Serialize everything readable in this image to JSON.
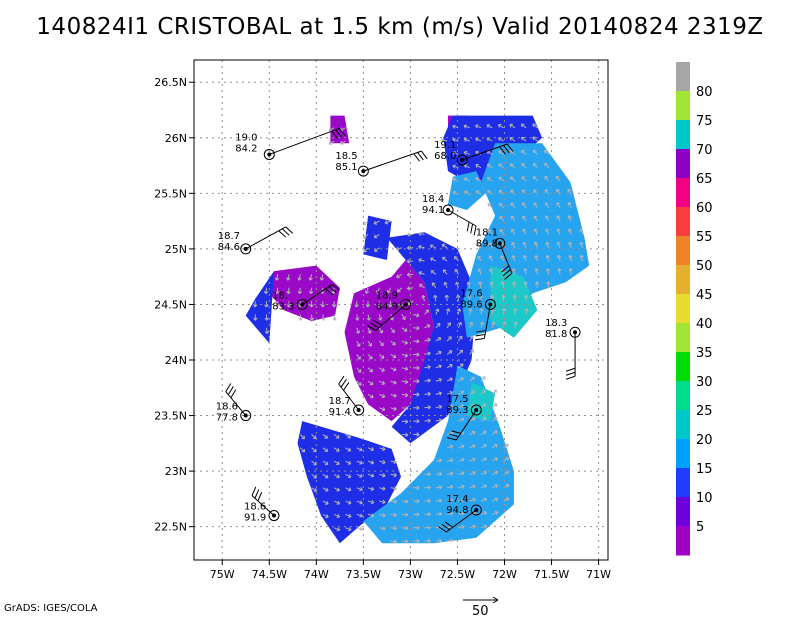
{
  "chart_data": {
    "type": "heatmap",
    "title": "140824I1 CRISTOBAL at 1.5 km (m/s) Valid 20140824 2319Z",
    "xlim": [
      -75.3,
      -70.9
    ],
    "ylim": [
      22.2,
      26.7
    ],
    "x_ticks": [
      {
        "v": -75.0,
        "label": "75W"
      },
      {
        "v": -74.5,
        "label": "74.5W"
      },
      {
        "v": -74.0,
        "label": "74W"
      },
      {
        "v": -73.5,
        "label": "73.5W"
      },
      {
        "v": -73.0,
        "label": "73W"
      },
      {
        "v": -72.5,
        "label": "72.5W"
      },
      {
        "v": -72.0,
        "label": "72W"
      },
      {
        "v": -71.5,
        "label": "71.5W"
      },
      {
        "v": -71.0,
        "label": "71W"
      }
    ],
    "y_ticks": [
      {
        "v": 22.5,
        "label": "22.5N"
      },
      {
        "v": 23.0,
        "label": "23N"
      },
      {
        "v": 23.5,
        "label": "23.5N"
      },
      {
        "v": 24.0,
        "label": "24N"
      },
      {
        "v": 24.5,
        "label": "24.5N"
      },
      {
        "v": 25.0,
        "label": "25N"
      },
      {
        "v": 25.5,
        "label": "25.5N"
      },
      {
        "v": 26.0,
        "label": "26N"
      },
      {
        "v": 26.5,
        "label": "26.5N"
      }
    ],
    "grid": true,
    "colorbar": {
      "labels": [
        "5",
        "10",
        "15",
        "20",
        "25",
        "30",
        "35",
        "40",
        "45",
        "50",
        "55",
        "60",
        "65",
        "70",
        "75",
        "80"
      ],
      "colors": [
        "#a000c8",
        "#6e00dc",
        "#1e3cff",
        "#00a0ff",
        "#00c8c8",
        "#00dc8c",
        "#00dc00",
        "#a0e632",
        "#e6dc32",
        "#e6af2d",
        "#f08228",
        "#fa3c3c",
        "#f00082",
        "#8c00c8",
        "#00c8c8",
        "#a0e632",
        "#a6a6a6"
      ]
    },
    "wind_regions": [
      {
        "name": "purple-core",
        "speed": 5,
        "color": "#9a08c8",
        "points": [
          [
            -73.6,
            24.6
          ],
          [
            -73.2,
            24.75
          ],
          [
            -73.05,
            24.9
          ],
          [
            -72.85,
            24.7
          ],
          [
            -72.75,
            24.3
          ],
          [
            -72.85,
            23.95
          ],
          [
            -73.0,
            23.6
          ],
          [
            -73.2,
            23.45
          ],
          [
            -73.45,
            23.6
          ],
          [
            -73.6,
            23.85
          ],
          [
            -73.7,
            24.25
          ]
        ]
      },
      {
        "name": "purple-west",
        "speed": 5,
        "color": "#9a08c8",
        "points": [
          [
            -74.45,
            24.8
          ],
          [
            -74.0,
            24.85
          ],
          [
            -73.75,
            24.65
          ],
          [
            -73.8,
            24.4
          ],
          [
            -74.05,
            24.35
          ],
          [
            -74.35,
            24.45
          ],
          [
            -74.5,
            24.6
          ]
        ]
      },
      {
        "name": "purple-north",
        "speed": 5,
        "color": "#9a08c8",
        "points": [
          [
            -73.85,
            26.2
          ],
          [
            -73.7,
            26.2
          ],
          [
            -73.65,
            25.95
          ],
          [
            -73.85,
            25.95
          ]
        ]
      },
      {
        "name": "purple-ne",
        "speed": 5,
        "color": "#9a08c8",
        "points": [
          [
            -72.6,
            26.2
          ],
          [
            -72.4,
            26.2
          ],
          [
            -72.35,
            25.8
          ],
          [
            -72.6,
            25.75
          ]
        ]
      },
      {
        "name": "blue-west",
        "speed": 10,
        "color": "#1e2ee6",
        "points": [
          [
            -74.65,
            24.55
          ],
          [
            -74.45,
            24.8
          ],
          [
            -74.5,
            24.15
          ],
          [
            -74.75,
            24.4
          ]
        ]
      },
      {
        "name": "blue-center",
        "speed": 10,
        "color": "#1e2ee6",
        "points": [
          [
            -73.25,
            25.1
          ],
          [
            -72.85,
            25.15
          ],
          [
            -72.5,
            25.0
          ],
          [
            -72.3,
            24.6
          ],
          [
            -72.35,
            24.0
          ],
          [
            -72.6,
            23.5
          ],
          [
            -73.0,
            23.25
          ],
          [
            -73.2,
            23.4
          ],
          [
            -73.0,
            23.6
          ],
          [
            -72.85,
            24.0
          ],
          [
            -72.75,
            24.3
          ],
          [
            -72.85,
            24.7
          ],
          [
            -73.05,
            24.9
          ]
        ]
      },
      {
        "name": "blue-sw",
        "speed": 10,
        "color": "#1e2ee6",
        "points": [
          [
            -74.15,
            23.45
          ],
          [
            -73.55,
            23.3
          ],
          [
            -73.2,
            23.2
          ],
          [
            -73.1,
            22.95
          ],
          [
            -73.25,
            22.7
          ],
          [
            -73.55,
            22.5
          ],
          [
            -73.75,
            22.35
          ],
          [
            -73.95,
            22.6
          ],
          [
            -74.1,
            22.95
          ],
          [
            -74.2,
            23.25
          ]
        ]
      },
      {
        "name": "blue-north",
        "speed": 10,
        "color": "#1e2ee6",
        "points": [
          [
            -72.55,
            26.2
          ],
          [
            -71.7,
            26.2
          ],
          [
            -71.6,
            26.0
          ],
          [
            -72.0,
            25.7
          ],
          [
            -72.3,
            25.55
          ],
          [
            -72.6,
            25.7
          ],
          [
            -72.65,
            26.0
          ]
        ]
      },
      {
        "name": "blue-scatter",
        "speed": 10,
        "color": "#1e2ee6",
        "points": [
          [
            -73.45,
            25.3
          ],
          [
            -73.2,
            25.25
          ],
          [
            -73.25,
            24.9
          ],
          [
            -73.5,
            24.95
          ]
        ]
      },
      {
        "name": "cyan-east",
        "speed": 20,
        "color": "#27a4f0",
        "points": [
          [
            -72.1,
            25.95
          ],
          [
            -71.6,
            25.95
          ],
          [
            -71.3,
            25.6
          ],
          [
            -71.15,
            25.1
          ],
          [
            -71.1,
            24.85
          ],
          [
            -71.35,
            24.7
          ],
          [
            -71.7,
            24.6
          ],
          [
            -72.0,
            24.3
          ],
          [
            -72.4,
            24.2
          ],
          [
            -72.45,
            24.5
          ],
          [
            -72.3,
            24.95
          ],
          [
            -72.1,
            25.3
          ],
          [
            -72.25,
            25.6
          ]
        ]
      },
      {
        "name": "cyan-south",
        "speed": 20,
        "color": "#27a4f0",
        "points": [
          [
            -72.5,
            23.95
          ],
          [
            -72.25,
            23.85
          ],
          [
            -72.05,
            23.4
          ],
          [
            -71.9,
            23.0
          ],
          [
            -71.9,
            22.7
          ],
          [
            -72.3,
            22.4
          ],
          [
            -72.75,
            22.35
          ],
          [
            -73.3,
            22.35
          ],
          [
            -73.5,
            22.55
          ],
          [
            -73.1,
            22.8
          ],
          [
            -72.75,
            23.1
          ],
          [
            -72.6,
            23.45
          ]
        ]
      },
      {
        "name": "cyan-ne",
        "speed": 20,
        "color": "#27a4f0",
        "points": [
          [
            -72.55,
            25.65
          ],
          [
            -72.3,
            25.7
          ],
          [
            -72.2,
            25.5
          ],
          [
            -72.4,
            25.35
          ],
          [
            -72.6,
            25.4
          ]
        ]
      },
      {
        "name": "teal-1",
        "speed": 20,
        "color": "#1cc8c8",
        "points": [
          [
            -72.15,
            24.85
          ],
          [
            -71.8,
            24.75
          ],
          [
            -71.65,
            24.45
          ],
          [
            -71.9,
            24.2
          ],
          [
            -72.15,
            24.35
          ]
        ]
      },
      {
        "name": "teal-2",
        "speed": 20,
        "color": "#1cc8c8",
        "points": [
          [
            -72.35,
            23.8
          ],
          [
            -72.1,
            23.7
          ],
          [
            -72.15,
            23.45
          ],
          [
            -72.4,
            23.5
          ]
        ]
      }
    ],
    "stations": [
      {
        "lon": -74.5,
        "lat": 25.85,
        "t": "19.0",
        "p": "84.2",
        "lx": -34,
        "ly": -14,
        "barb": [
          70,
          -26
        ]
      },
      {
        "lon": -73.5,
        "lat": 25.7,
        "t": "18.5",
        "p": "85.1",
        "lx": -28,
        "ly": -12,
        "barb": [
          58,
          -20
        ]
      },
      {
        "lon": -72.45,
        "lat": 25.8,
        "t": "19.1",
        "p": "68.0",
        "lx": -28,
        "ly": -12,
        "barb": [
          45,
          -16
        ]
      },
      {
        "lon": -72.6,
        "lat": 25.35,
        "t": "18.4",
        "p": "94.1",
        "lx": -26,
        "ly": -8,
        "barb": [
          28,
          16
        ]
      },
      {
        "lon": -72.05,
        "lat": 25.05,
        "t": "18.1",
        "p": "89.8",
        "lx": -24,
        "ly": -8,
        "barb": [
          12,
          30
        ]
      },
      {
        "lon": -74.75,
        "lat": 25.0,
        "t": "18.7",
        "p": "84.6",
        "lx": -28,
        "ly": -10,
        "barb": [
          40,
          -22
        ]
      },
      {
        "lon": -74.15,
        "lat": 24.5,
        "t": "18.",
        "p": "83.3",
        "lx": -30,
        "ly": -6,
        "barb": [
          30,
          -20
        ]
      },
      {
        "lon": -73.05,
        "lat": 24.5,
        "t": "18.9",
        "p": "84.9",
        "lx": -30,
        "ly": -6,
        "barb": [
          -30,
          26
        ]
      },
      {
        "lon": -72.15,
        "lat": 24.5,
        "t": "17.6",
        "p": "89.6",
        "lx": -30,
        "ly": -8,
        "barb": [
          -6,
          34
        ]
      },
      {
        "lon": -71.25,
        "lat": 24.25,
        "t": "18.3",
        "p": "81.8",
        "lx": -30,
        "ly": -6,
        "barb": [
          0,
          44
        ]
      },
      {
        "lon": -74.75,
        "lat": 23.5,
        "t": "18.6",
        "p": "77.8",
        "lx": -30,
        "ly": -6,
        "barb": [
          -20,
          -24
        ]
      },
      {
        "lon": -73.55,
        "lat": 23.55,
        "t": "18.7",
        "p": "91.4",
        "lx": -30,
        "ly": -6,
        "barb": [
          -20,
          -26
        ]
      },
      {
        "lon": -72.3,
        "lat": 23.55,
        "t": "17.5",
        "p": "89.3",
        "lx": -30,
        "ly": -8,
        "barb": [
          -20,
          30
        ]
      },
      {
        "lon": -74.45,
        "lat": 22.6,
        "t": "18.6",
        "p": "91.9",
        "lx": -30,
        "ly": -6,
        "barb": [
          -22,
          -20
        ]
      },
      {
        "lon": -72.3,
        "lat": 22.65,
        "t": "17.4",
        "p": "94.8",
        "lx": -30,
        "ly": -8,
        "barb": [
          -30,
          22
        ]
      }
    ],
    "reference_vector": "50"
  },
  "footer": {
    "credit": "GrADS: IGES/COLA"
  }
}
